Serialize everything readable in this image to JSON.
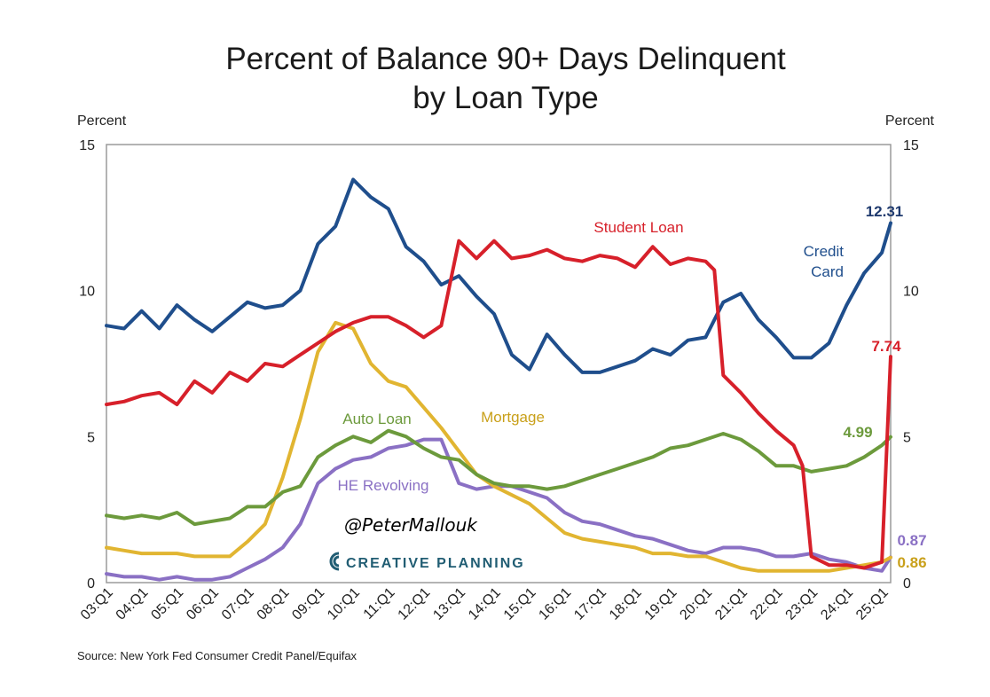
{
  "colors": {
    "credit_card": "#1f4e8c",
    "student_loan": "#d7202a",
    "mortgage": "#e1b531",
    "auto_loan": "#6c9a3c",
    "he_revolving": "#8a70c4",
    "handle": "#2a7c98",
    "brand": "#215d73",
    "frame": "#9a9a9a"
  },
  "chart_data": {
    "type": "line",
    "title_line1": "Percent of Balance 90+ Days Delinquent",
    "title_line2": "by Loan Type",
    "ylabel_left": "Percent",
    "ylabel_right": "Percent",
    "ylim": [
      0,
      15
    ],
    "yticks": [
      "0",
      "5",
      "10",
      "15"
    ],
    "xlim": [
      2003.0,
      2025.25
    ],
    "categories": [
      "03:Q1",
      "04:Q1",
      "05:Q1",
      "06:Q1",
      "07:Q1",
      "08:Q1",
      "09:Q1",
      "10:Q1",
      "11:Q1",
      "12:Q1",
      "13:Q1",
      "14:Q1",
      "15:Q1",
      "16:Q1",
      "17:Q1",
      "18:Q1",
      "19:Q1",
      "20:Q1",
      "21:Q1",
      "22:Q1",
      "23:Q1",
      "24:Q1",
      "25:Q1"
    ],
    "source": "Source: New York Fed Consumer Credit Panel/Equifax",
    "watermark_handle": "@PeterMallouk",
    "watermark_brand": "CREATIVE PLANNING",
    "series": [
      {
        "name": "Credit Card",
        "label_line1": "Credit",
        "label_line2": "Card",
        "end_label": "12.31",
        "x": [
          2003.0,
          2003.5,
          2004.0,
          2004.5,
          2005.0,
          2005.5,
          2006.0,
          2006.5,
          2007.0,
          2007.5,
          2008.0,
          2008.5,
          2009.0,
          2009.5,
          2010.0,
          2010.5,
          2011.0,
          2011.5,
          2012.0,
          2012.5,
          2013.0,
          2013.5,
          2014.0,
          2014.5,
          2015.0,
          2015.5,
          2016.0,
          2016.5,
          2017.0,
          2017.5,
          2018.0,
          2018.5,
          2019.0,
          2019.5,
          2020.0,
          2020.5,
          2021.0,
          2021.5,
          2022.0,
          2022.5,
          2023.0,
          2023.5,
          2024.0,
          2024.5,
          2025.0,
          2025.25
        ],
        "values": [
          8.8,
          8.7,
          9.3,
          8.7,
          9.5,
          9.0,
          8.6,
          9.1,
          9.6,
          9.4,
          9.5,
          10.0,
          11.6,
          12.2,
          13.8,
          13.2,
          12.8,
          11.5,
          11.0,
          10.2,
          10.5,
          9.8,
          9.2,
          7.8,
          7.3,
          8.5,
          7.8,
          7.2,
          7.2,
          7.4,
          7.6,
          8.0,
          7.8,
          8.3,
          8.4,
          9.6,
          9.9,
          9.0,
          8.4,
          7.7,
          7.7,
          8.2,
          9.5,
          10.6,
          11.3,
          12.31
        ]
      },
      {
        "name": "Student Loan",
        "label": "Student Loan",
        "end_label": "7.74",
        "x": [
          2003.0,
          2003.5,
          2004.0,
          2004.5,
          2005.0,
          2005.5,
          2006.0,
          2006.5,
          2007.0,
          2007.5,
          2008.0,
          2008.5,
          2009.0,
          2009.5,
          2010.0,
          2010.5,
          2011.0,
          2011.5,
          2012.0,
          2012.5,
          2013.0,
          2013.5,
          2014.0,
          2014.5,
          2015.0,
          2015.5,
          2016.0,
          2016.5,
          2017.0,
          2017.5,
          2018.0,
          2018.5,
          2019.0,
          2019.5,
          2020.0,
          2020.25,
          2020.5,
          2021.0,
          2021.5,
          2022.0,
          2022.5,
          2022.75,
          2023.0,
          2023.5,
          2024.0,
          2024.5,
          2025.0,
          2025.25
        ],
        "values": [
          6.1,
          6.2,
          6.4,
          6.5,
          6.1,
          6.9,
          6.5,
          7.2,
          6.9,
          7.5,
          7.4,
          7.8,
          8.2,
          8.6,
          8.9,
          9.1,
          9.1,
          8.8,
          8.4,
          8.8,
          11.7,
          11.1,
          11.7,
          11.1,
          11.2,
          11.4,
          11.1,
          11.0,
          11.2,
          11.1,
          10.8,
          11.5,
          10.9,
          11.1,
          11.0,
          10.7,
          7.1,
          6.5,
          5.8,
          5.2,
          4.7,
          4.0,
          0.9,
          0.6,
          0.6,
          0.5,
          0.7,
          7.74
        ]
      },
      {
        "name": "Mortgage",
        "label": "Mortgage",
        "end_label": "0.86",
        "x": [
          2003.0,
          2003.5,
          2004.0,
          2004.5,
          2005.0,
          2005.5,
          2006.0,
          2006.5,
          2007.0,
          2007.5,
          2008.0,
          2008.5,
          2009.0,
          2009.5,
          2010.0,
          2010.5,
          2011.0,
          2011.5,
          2012.0,
          2012.5,
          2013.0,
          2013.5,
          2014.0,
          2014.5,
          2015.0,
          2015.5,
          2016.0,
          2016.5,
          2017.0,
          2017.5,
          2018.0,
          2018.5,
          2019.0,
          2019.5,
          2020.0,
          2020.5,
          2021.0,
          2021.5,
          2022.0,
          2022.5,
          2023.0,
          2023.5,
          2024.0,
          2024.5,
          2025.0,
          2025.25
        ],
        "values": [
          1.2,
          1.1,
          1.0,
          1.0,
          1.0,
          0.9,
          0.9,
          0.9,
          1.4,
          2.0,
          3.6,
          5.6,
          7.9,
          8.9,
          8.7,
          7.5,
          6.9,
          6.7,
          6.0,
          5.3,
          4.5,
          3.7,
          3.3,
          3.0,
          2.7,
          2.2,
          1.7,
          1.5,
          1.4,
          1.3,
          1.2,
          1.0,
          1.0,
          0.9,
          0.9,
          0.7,
          0.5,
          0.4,
          0.4,
          0.4,
          0.4,
          0.4,
          0.5,
          0.6,
          0.7,
          0.86
        ]
      },
      {
        "name": "Auto Loan",
        "label": "Auto Loan",
        "end_label": "4.99",
        "x": [
          2003.0,
          2003.5,
          2004.0,
          2004.5,
          2005.0,
          2005.5,
          2006.0,
          2006.5,
          2007.0,
          2007.5,
          2008.0,
          2008.5,
          2009.0,
          2009.5,
          2010.0,
          2010.5,
          2011.0,
          2011.5,
          2012.0,
          2012.5,
          2013.0,
          2013.5,
          2014.0,
          2014.5,
          2015.0,
          2015.5,
          2016.0,
          2016.5,
          2017.0,
          2017.5,
          2018.0,
          2018.5,
          2019.0,
          2019.5,
          2020.0,
          2020.5,
          2021.0,
          2021.5,
          2022.0,
          2022.5,
          2023.0,
          2023.5,
          2024.0,
          2024.5,
          2025.0,
          2025.25
        ],
        "values": [
          2.3,
          2.2,
          2.3,
          2.2,
          2.4,
          2.0,
          2.1,
          2.2,
          2.6,
          2.6,
          3.1,
          3.3,
          4.3,
          4.7,
          5.0,
          4.8,
          5.2,
          5.0,
          4.6,
          4.3,
          4.2,
          3.7,
          3.4,
          3.3,
          3.3,
          3.2,
          3.3,
          3.5,
          3.7,
          3.9,
          4.1,
          4.3,
          4.6,
          4.7,
          4.9,
          5.1,
          4.9,
          4.5,
          4.0,
          4.0,
          3.8,
          3.9,
          4.0,
          4.3,
          4.7,
          4.99
        ]
      },
      {
        "name": "HE Revolving",
        "label": "HE Revolving",
        "end_label": "0.87",
        "x": [
          2003.0,
          2003.5,
          2004.0,
          2004.5,
          2005.0,
          2005.5,
          2006.0,
          2006.5,
          2007.0,
          2007.5,
          2008.0,
          2008.5,
          2009.0,
          2009.5,
          2010.0,
          2010.5,
          2011.0,
          2011.5,
          2012.0,
          2012.5,
          2013.0,
          2013.5,
          2014.0,
          2014.5,
          2015.0,
          2015.5,
          2016.0,
          2016.5,
          2017.0,
          2017.5,
          2018.0,
          2018.5,
          2019.0,
          2019.5,
          2020.0,
          2020.5,
          2021.0,
          2021.5,
          2022.0,
          2022.5,
          2023.0,
          2023.5,
          2024.0,
          2024.5,
          2025.0,
          2025.25
        ],
        "values": [
          0.3,
          0.2,
          0.2,
          0.1,
          0.2,
          0.1,
          0.1,
          0.2,
          0.5,
          0.8,
          1.2,
          2.0,
          3.4,
          3.9,
          4.2,
          4.3,
          4.6,
          4.7,
          4.9,
          4.9,
          3.4,
          3.2,
          3.3,
          3.3,
          3.1,
          2.9,
          2.4,
          2.1,
          2.0,
          1.8,
          1.6,
          1.5,
          1.3,
          1.1,
          1.0,
          1.2,
          1.2,
          1.1,
          0.9,
          0.9,
          1.0,
          0.8,
          0.7,
          0.5,
          0.4,
          0.87
        ]
      }
    ]
  }
}
